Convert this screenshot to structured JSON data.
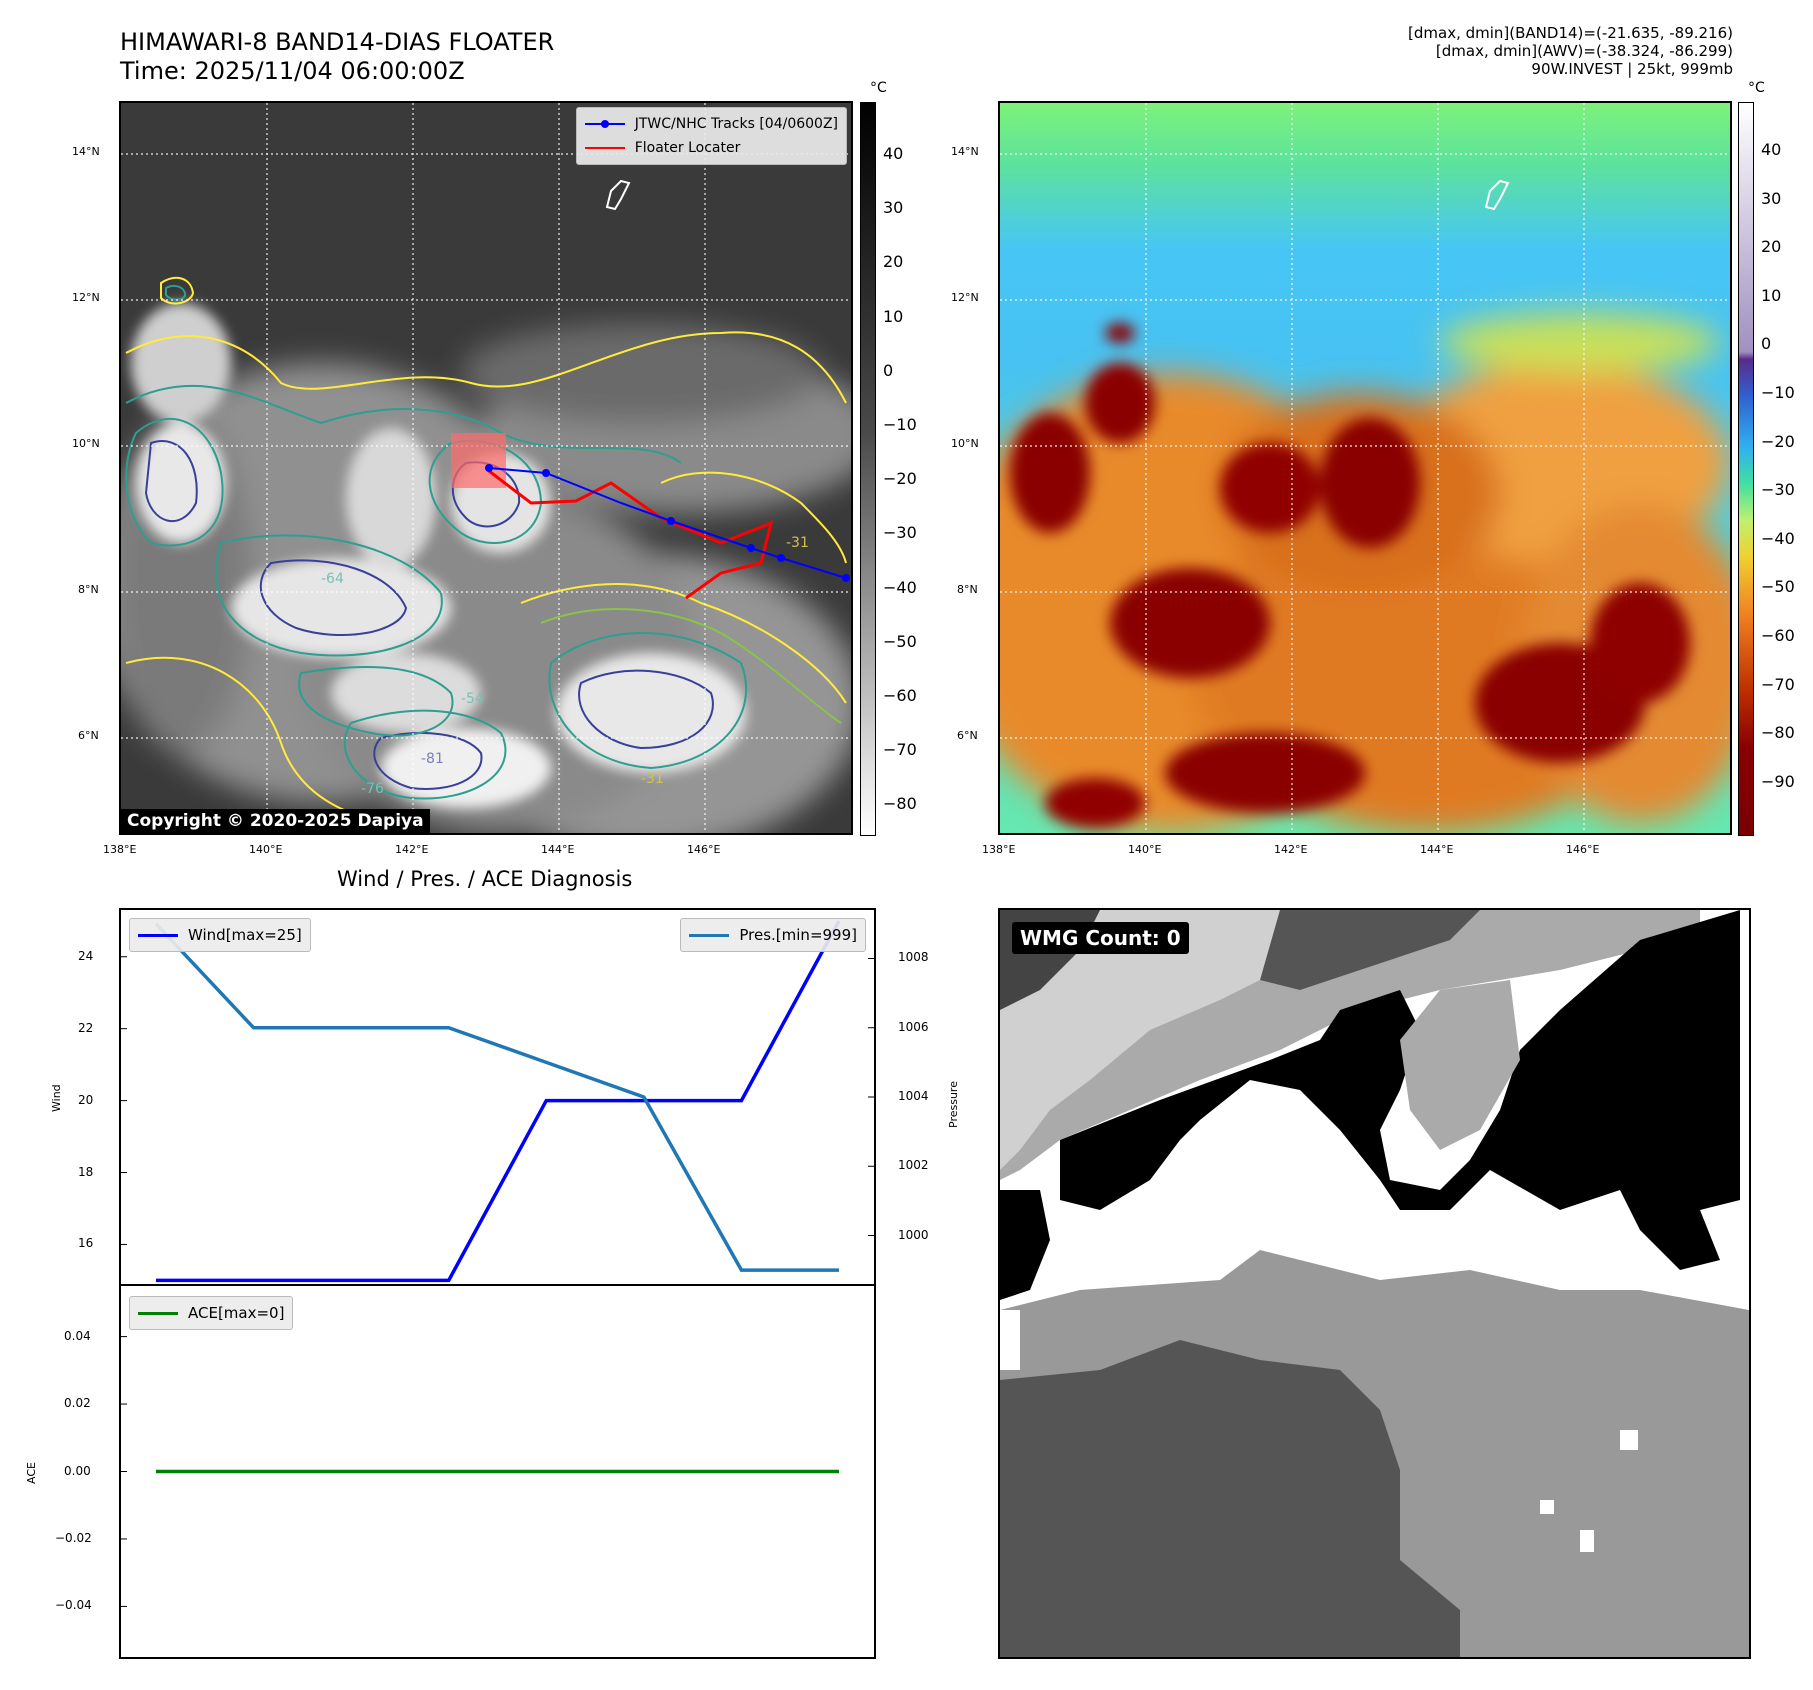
{
  "header": {
    "title_line1": "HIMAWARI-8 BAND14-DIAS FLOATER",
    "title_line2": "Time: 2025/11/04 06:00:00Z",
    "info_line1": "[dmax, dmin](BAND14)=(-21.635, -89.216)",
    "info_line2": "[dmax, dmin](AWV)=(-38.324, -86.299)",
    "info_line3": "90W.INVEST | 25kt, 999mb"
  },
  "maps": {
    "lat_labels": [
      "14°N",
      "12°N",
      "10°N",
      "8°N",
      "6°N"
    ],
    "lon_labels": [
      "138°E",
      "140°E",
      "142°E",
      "144°E",
      "146°E"
    ],
    "colorbar_unit": "°C",
    "band14_ticks": [
      "40",
      "30",
      "20",
      "10",
      "0",
      "−10",
      "−20",
      "−30",
      "−40",
      "−50",
      "−60",
      "−70",
      "−80"
    ],
    "awv_ticks": [
      "40",
      "30",
      "20",
      "10",
      "0",
      "−10",
      "−20",
      "−30",
      "−40",
      "−50",
      "−60",
      "−70",
      "−80",
      "−90"
    ],
    "legend_tracks": "JTWC/NHC Tracks [04/0600Z]",
    "legend_floater": "Floater Locater",
    "copyright": "Copyright © 2020-2025 Dapiya",
    "contour_labels": [
      "-31",
      "-54",
      "-64",
      "-76",
      "-81"
    ],
    "colors": {
      "track": "#0000ff",
      "floater": "#ff0000"
    }
  },
  "diag": {
    "title": "Wind / Pres. / ACE Diagnosis",
    "wind_ylabel": "Wind",
    "pres_ylabel": "Pressure",
    "ace_ylabel": "ACE",
    "wind_legend": "Wind[max=25]",
    "pres_legend": "Pres.[min=999]",
    "ace_legend": "ACE[max=0]"
  },
  "wmg": {
    "label": "WMG Count: 0"
  },
  "chart_data": [
    {
      "type": "line",
      "title": "Wind / Pres. / ACE Diagnosis",
      "ylabel": "Wind",
      "ylim": [
        14.9,
        25.3
      ],
      "yticks": [
        16,
        18,
        20,
        22,
        24
      ],
      "series": [
        {
          "name": "Wind[max=25]",
          "color": "#0000ff",
          "axis": "left",
          "values": [
            15,
            15,
            15,
            15,
            20,
            20,
            20,
            25
          ]
        },
        {
          "name": "Pres.[min=999]",
          "color": "#1f77b4",
          "axis": "right",
          "values": [
            1009,
            1006,
            1006,
            1006,
            1005,
            1004,
            999,
            999
          ]
        }
      ],
      "pressure_axis": {
        "ylabel": "Pressure",
        "ylim": [
          998.6,
          1009.4
        ],
        "yticks": [
          1000,
          1002,
          1004,
          1006,
          1008
        ]
      }
    },
    {
      "type": "line",
      "ylabel": "ACE",
      "ylim": [
        -0.055,
        0.055
      ],
      "yticks": [
        0.04,
        0.02,
        0.0,
        -0.02,
        -0.04
      ],
      "ytick_labels": [
        "0.04",
        "0.02",
        "0.00",
        "−0.02",
        "−0.04"
      ],
      "series": [
        {
          "name": "ACE[max=0]",
          "color": "#008000",
          "values": [
            0,
            0,
            0,
            0,
            0,
            0,
            0,
            0
          ]
        }
      ]
    }
  ]
}
